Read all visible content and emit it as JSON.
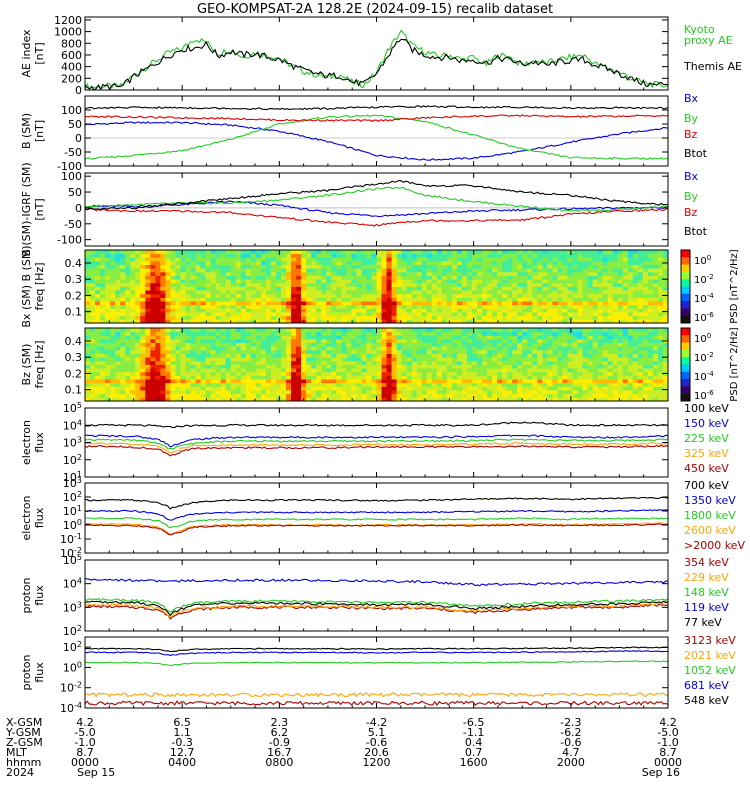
{
  "title": "GEO-KOMPSAT-2A 128.2E (2024-09-15) recalib dataset",
  "time_ticks": [
    "0000",
    "0400",
    "0800",
    "1200",
    "1600",
    "2000",
    "0000"
  ],
  "chart_data": [
    {
      "type": "line",
      "panel": "ae",
      "ylabel": [
        "AE index",
        "[nT]"
      ],
      "yticks": [
        0,
        200,
        400,
        600,
        800,
        1000,
        1200
      ],
      "ylim": [
        0,
        1250
      ],
      "scale": "linear",
      "x_hours": [
        0,
        0.5,
        1,
        1.5,
        2,
        2.5,
        3,
        3.5,
        4,
        4.5,
        5,
        5.5,
        6,
        6.5,
        7,
        7.5,
        8,
        8.5,
        9,
        9.5,
        10,
        10.5,
        11,
        11.5,
        12,
        12.5,
        13,
        13.5,
        14,
        14.5,
        15,
        15.5,
        16,
        16.5,
        17,
        17.5,
        18,
        18.5,
        19,
        19.5,
        20,
        20.5,
        21,
        21.5,
        22,
        22.5,
        23,
        23.5,
        24
      ],
      "series": [
        {
          "name": "Kyoto proxy AE",
          "color": "#22cc22",
          "values": [
            60,
            50,
            70,
            60,
            250,
            380,
            520,
            650,
            700,
            880,
            820,
            620,
            700,
            560,
            640,
            600,
            540,
            420,
            320,
            260,
            220,
            260,
            130,
            90,
            300,
            700,
            1000,
            750,
            650,
            580,
            600,
            520,
            560,
            430,
            600,
            560,
            420,
            500,
            460,
            520,
            560,
            600,
            450,
            380,
            300,
            200,
            120,
            90,
            80
          ]
        },
        {
          "name": "Themis AE",
          "color": "#000000",
          "values": [
            50,
            40,
            60,
            50,
            230,
            350,
            480,
            600,
            700,
            720,
            780,
            580,
            660,
            600,
            620,
            560,
            520,
            420,
            340,
            280,
            240,
            250,
            140,
            100,
            280,
            600,
            900,
            680,
            600,
            560,
            560,
            500,
            520,
            460,
            540,
            520,
            440,
            480,
            420,
            480,
            500,
            520,
            430,
            360,
            280,
            190,
            110,
            80,
            120
          ]
        }
      ],
      "legend": [
        "Kyoto",
        "proxy AE",
        "Themis AE"
      ]
    },
    {
      "type": "line",
      "panel": "bgsm",
      "ylabel": [
        "B (SM)",
        "[nT]"
      ],
      "yticks": [
        -100,
        -50,
        0,
        50,
        100
      ],
      "ylim": [
        -100,
        150
      ],
      "scale": "linear",
      "x_hours": [
        0,
        2,
        4,
        6,
        8,
        10,
        12,
        14,
        16,
        18,
        20,
        22,
        24
      ],
      "series": [
        {
          "name": "Bx",
          "color": "#0000dd",
          "values": [
            48,
            55,
            55,
            46,
            24,
            -13,
            -62,
            -78,
            -72,
            -48,
            -15,
            15,
            37
          ]
        },
        {
          "name": "By",
          "color": "#22cc22",
          "values": [
            -75,
            -62,
            -45,
            -5,
            50,
            75,
            80,
            60,
            10,
            -40,
            -70,
            -73,
            -73
          ]
        },
        {
          "name": "Bz",
          "color": "#dd0000",
          "values": [
            77,
            75,
            72,
            70,
            64,
            63,
            62,
            72,
            78,
            80,
            76,
            78,
            80
          ]
        },
        {
          "name": "Btot",
          "color": "#000000",
          "values": [
            106,
            109,
            108,
            106,
            103,
            105,
            110,
            113,
            110,
            110,
            107,
            108,
            107
          ]
        }
      ],
      "legend": [
        "Bx",
        "By",
        "Bz",
        "Btot"
      ]
    },
    {
      "type": "line",
      "panel": "bigrf",
      "ylabel": [
        "B (SM)-IGRF (SM)",
        "[nT]"
      ],
      "yticks": [
        -100,
        -50,
        0,
        50,
        100
      ],
      "ylim": [
        -120,
        110
      ],
      "scale": "linear",
      "x_hours": [
        0,
        2,
        4,
        6,
        8,
        10,
        12,
        13,
        14,
        16,
        18,
        20,
        22,
        24
      ],
      "series": [
        {
          "name": "Bx",
          "color": "#0000dd",
          "values": [
            5,
            5,
            10,
            20,
            8,
            -15,
            -25,
            -22,
            -18,
            -10,
            -6,
            -3,
            0,
            2
          ]
        },
        {
          "name": "By",
          "color": "#22cc22",
          "values": [
            5,
            10,
            15,
            15,
            25,
            40,
            60,
            65,
            40,
            20,
            5,
            -10,
            -5,
            5
          ]
        },
        {
          "name": "Bz",
          "color": "#dd0000",
          "values": [
            -5,
            -10,
            -10,
            -15,
            -30,
            -45,
            -55,
            -45,
            -40,
            -40,
            -38,
            -20,
            -10,
            -5
          ]
        },
        {
          "name": "Btot",
          "color": "#000000",
          "values": [
            -5,
            0,
            15,
            30,
            45,
            55,
            75,
            85,
            70,
            70,
            50,
            40,
            20,
            10
          ]
        }
      ],
      "legend": [
        "Bx",
        "By",
        "Bz",
        "Btot"
      ]
    },
    {
      "type": "heatmap",
      "panel": "spec1",
      "ylabel": [
        "Bx (SM) B (SM)",
        "freq [Hz]"
      ],
      "yticks": [
        0.1,
        0.2,
        0.3,
        0.4
      ],
      "ylim": [
        0.03,
        0.48
      ],
      "colorbar": {
        "label": "PSD [nT^2/Hz]",
        "ticks": [
          "10^0",
          "10^-2",
          "10^-4",
          "10^-6"
        ]
      },
      "burst_hours": [
        2.9,
        8.7,
        12.5
      ],
      "band_hz": 0.16
    },
    {
      "type": "heatmap",
      "panel": "spec2",
      "ylabel": [
        "Bz (SM)",
        "freq [Hz]"
      ],
      "yticks": [
        0.1,
        0.2,
        0.3,
        0.4
      ],
      "ylim": [
        0.03,
        0.48
      ],
      "colorbar": {
        "label": "PSD [nT^2/Hz]",
        "ticks": [
          "10^0",
          "10^-2",
          "10^-4",
          "10^-6"
        ]
      },
      "burst_hours": [
        2.9,
        8.7,
        12.5
      ],
      "band_hz": 0.16
    },
    {
      "type": "line",
      "panel": "elec1",
      "ylabel": [
        "electron",
        "flux"
      ],
      "yticks": [
        "10^1",
        "10^2",
        "10^3",
        "10^4",
        "10^5"
      ],
      "ylim": [
        10,
        100000
      ],
      "scale": "log",
      "x_hours": [
        0,
        2,
        3,
        3.5,
        4,
        4.5,
        6,
        8,
        10,
        12,
        14,
        16,
        18,
        20,
        22,
        24
      ],
      "series": [
        {
          "name": "100 keV",
          "color": "#000000",
          "values": [
            10000,
            10000,
            9000,
            7500,
            9000,
            9500,
            10000,
            10000,
            10000,
            10000,
            10000,
            10000,
            15000,
            10000,
            10000,
            10000
          ]
        },
        {
          "name": "150 keV",
          "color": "#0000dd",
          "values": [
            2500,
            2300,
            1500,
            600,
            1000,
            1500,
            2000,
            2000,
            2000,
            2000,
            2000,
            2200,
            2600,
            2000,
            2000,
            2500
          ]
        },
        {
          "name": "225 keV",
          "color": "#22cc22",
          "values": [
            1500,
            1400,
            900,
            400,
            700,
            900,
            1200,
            1200,
            1200,
            1200,
            1200,
            1300,
            1500,
            1300,
            1300,
            1500
          ]
        },
        {
          "name": "325 keV",
          "color": "#ffa500",
          "values": [
            900,
            800,
            600,
            250,
            450,
            650,
            700,
            700,
            700,
            750,
            750,
            800,
            900,
            800,
            800,
            900
          ]
        },
        {
          "name": "450 keV",
          "color": "#aa0000",
          "values": [
            600,
            550,
            400,
            150,
            300,
            450,
            500,
            500,
            500,
            550,
            550,
            550,
            600,
            550,
            550,
            650
          ]
        }
      ],
      "legend": [
        "100 keV",
        "150 keV",
        "225 keV",
        "325 keV",
        "450 keV"
      ]
    },
    {
      "type": "line",
      "panel": "elec2",
      "ylabel": [
        "electron",
        "flux"
      ],
      "yticks": [
        "10^-2",
        "10^-1",
        "10^0",
        "10^1",
        "10^2",
        "10^3"
      ],
      "ylim": [
        0.01,
        1000
      ],
      "scale": "log",
      "x_hours": [
        0,
        2,
        3,
        3.5,
        4,
        4.5,
        6,
        8,
        10,
        12,
        14,
        16,
        18,
        20,
        22,
        24
      ],
      "series": [
        {
          "name": "700 keV",
          "color": "#000000",
          "values": [
            60,
            60,
            40,
            15,
            25,
            40,
            60,
            60,
            60,
            55,
            60,
            70,
            80,
            70,
            80,
            90
          ]
        },
        {
          "name": "1350 keV",
          "color": "#0000dd",
          "values": [
            10,
            10,
            6,
            2,
            4,
            6,
            8,
            8,
            8,
            8,
            8,
            9,
            10,
            9,
            10,
            12
          ]
        },
        {
          "name": "1800 keV",
          "color": "#22cc22",
          "values": [
            3,
            3,
            2,
            0.6,
            1,
            2,
            2.5,
            2.5,
            2.5,
            2.5,
            2.5,
            2.5,
            3,
            2.5,
            3,
            3
          ]
        },
        {
          "name": "2600 keV",
          "color": "#ffa500",
          "values": [
            1.2,
            1.1,
            0.7,
            0.2,
            0.4,
            0.8,
            1,
            1,
            1,
            1,
            1,
            1,
            1.2,
            1,
            1.2,
            1.3
          ]
        },
        {
          "name": ">2000 keV",
          "color": "#aa0000",
          "values": [
            1,
            0.9,
            0.6,
            0.18,
            0.35,
            0.7,
            0.9,
            0.9,
            0.9,
            0.9,
            0.9,
            0.9,
            1,
            0.9,
            1,
            1.1
          ]
        }
      ],
      "legend": [
        "700 keV",
        "1350 keV",
        "1800 keV",
        "2600 keV",
        ">2000 keV"
      ]
    },
    {
      "type": "line",
      "panel": "prot1",
      "ylabel": [
        "proton",
        "flux"
      ],
      "yticks": [
        "10^2",
        "10^3",
        "10^4",
        "10^5"
      ],
      "ylim": [
        100,
        100000
      ],
      "scale": "log",
      "x_hours": [
        0,
        2,
        3,
        3.5,
        4,
        4.5,
        6,
        8,
        10,
        12,
        14,
        16,
        18,
        20,
        22,
        24
      ],
      "series": [
        {
          "name": "354 keV",
          "color": "#aa0000",
          "values": [
            1100,
            1000,
            800,
            350,
            600,
            800,
            1000,
            1000,
            1000,
            900,
            900,
            600,
            800,
            1000,
            1000,
            1300
          ]
        },
        {
          "name": "229 keV",
          "color": "#ffa500",
          "values": [
            1300,
            1200,
            900,
            400,
            700,
            900,
            1100,
            1100,
            1100,
            1000,
            1000,
            700,
            900,
            1100,
            1200,
            1500
          ]
        },
        {
          "name": "148 keV",
          "color": "#22cc22",
          "values": [
            2200,
            2000,
            1500,
            600,
            1100,
            1500,
            1800,
            1800,
            1700,
            1600,
            1600,
            1100,
            1400,
            1700,
            1800,
            2200
          ]
        },
        {
          "name": "119 keV",
          "color": "#0000dd",
          "values": [
            15000,
            14000,
            13000,
            12000,
            13000,
            13500,
            14000,
            14000,
            13500,
            13000,
            12000,
            9000,
            9500,
            10500,
            11000,
            12000
          ]
        },
        {
          "name": "77 keV",
          "color": "#000000",
          "values": [
            1700,
            1600,
            1200,
            500,
            900,
            1200,
            1500,
            1500,
            1400,
            1300,
            1300,
            900,
            1100,
            1300,
            1400,
            1700
          ]
        }
      ],
      "legend": [
        "354 keV",
        "229 keV",
        "148 keV",
        "119 keV",
        "77 keV"
      ]
    },
    {
      "type": "line",
      "panel": "prot2",
      "ylabel": [
        "proton",
        "flux"
      ],
      "yticks": [
        "10^-4",
        "10^-2",
        "10^0",
        "10^2"
      ],
      "ylim": [
        0.0001,
        1000
      ],
      "scale": "log",
      "x_hours": [
        0,
        2,
        3,
        3.5,
        4,
        4.5,
        6,
        8,
        10,
        12,
        14,
        16,
        18,
        20,
        22,
        24
      ],
      "series": [
        {
          "name": "3123 keV",
          "color": "#aa0000",
          "values": [
            0.0003,
            0.0003,
            0.0003,
            0.0003,
            0.0003,
            0.0003,
            0.0003,
            0.0003,
            0.0003,
            0.0003,
            0.0003,
            0.0003,
            0.0003,
            0.0003,
            0.0003,
            0.0003
          ]
        },
        {
          "name": "2021 keV",
          "color": "#ffa500",
          "values": [
            0.002,
            0.002,
            0.002,
            0.002,
            0.002,
            0.002,
            0.002,
            0.002,
            0.002,
            0.002,
            0.002,
            0.002,
            0.002,
            0.002,
            0.002,
            0.002
          ]
        },
        {
          "name": "1052 keV",
          "color": "#22cc22",
          "values": [
            3,
            3,
            2.5,
            1.5,
            2.2,
            2.5,
            3,
            3,
            3,
            2.8,
            3,
            3,
            3.2,
            3.5,
            4,
            4
          ]
        },
        {
          "name": "681 keV",
          "color": "#0000dd",
          "values": [
            30,
            30,
            25,
            15,
            22,
            25,
            30,
            30,
            30,
            28,
            30,
            30,
            32,
            35,
            40,
            40
          ]
        },
        {
          "name": "548 keV",
          "color": "#000000",
          "values": [
            70,
            70,
            60,
            35,
            50,
            60,
            70,
            70,
            70,
            65,
            70,
            70,
            75,
            80,
            90,
            90
          ]
        }
      ],
      "legend": [
        "3123 keV",
        "2021 keV",
        "1052 keV",
        "681 keV",
        "548 keV"
      ]
    }
  ],
  "footer": {
    "labels": [
      "X-GSM",
      "Y-GSM",
      "Z-GSM",
      "MLT",
      "hhmm",
      "2024"
    ],
    "columns": [
      [
        "4.2",
        "-5.0",
        "-1.0",
        "8.7",
        "0000",
        "Sep 15"
      ],
      [
        "6.5",
        "1.1",
        "-0.3",
        "12.7",
        "0400",
        ""
      ],
      [
        "2.3",
        "6.2",
        "-0.9",
        "16.7",
        "0800",
        ""
      ],
      [
        "-4.2",
        "5.1",
        "-0.6",
        "20.6",
        "1200",
        ""
      ],
      [
        "-6.5",
        "-1.1",
        "0.4",
        "0.7",
        "1600",
        ""
      ],
      [
        "-2.3",
        "-6.2",
        "-0.6",
        "4.7",
        "2000",
        ""
      ],
      [
        "4.2",
        "-5.0",
        "-1.0",
        "8.7",
        "0000",
        "Sep 16"
      ]
    ]
  }
}
